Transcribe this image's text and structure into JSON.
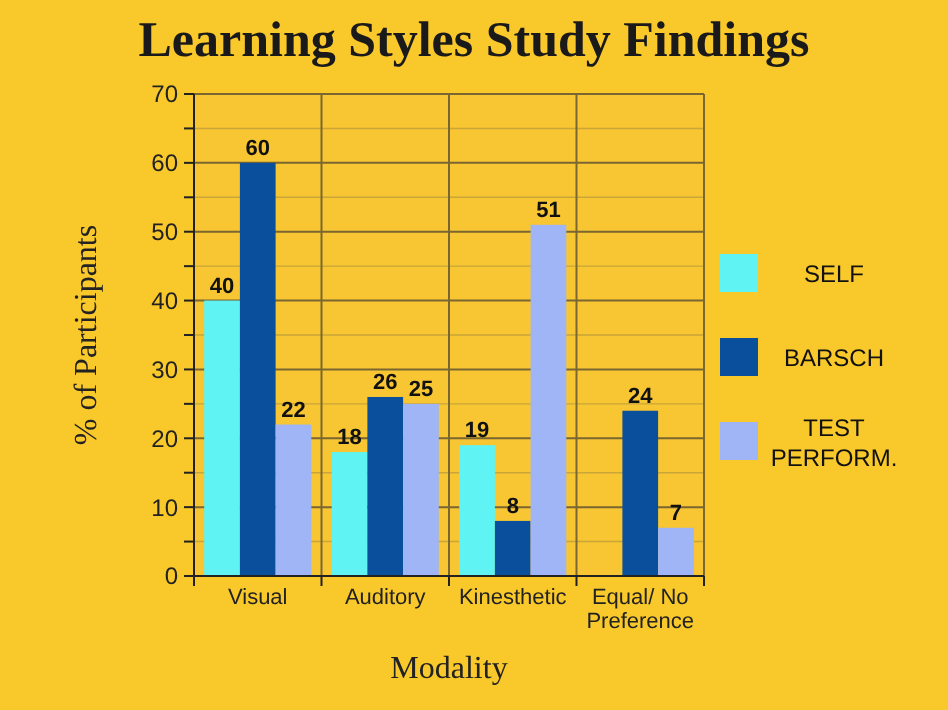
{
  "chart_data": {
    "type": "bar",
    "title": "Learning Styles Study Findings",
    "xlabel": "Modality",
    "ylabel": "% of Participants",
    "categories": [
      "Visual",
      "Auditory",
      "Kinesthetic",
      "Equal/ No Preference"
    ],
    "series": [
      {
        "name": "SELF",
        "color": "#5ff3f3",
        "values": [
          40,
          18,
          19,
          null
        ]
      },
      {
        "name": "BARSCH",
        "color": "#0a4f9c",
        "values": [
          60,
          26,
          8,
          24
        ]
      },
      {
        "name": "TEST PERFORM.",
        "color": "#a0b5f5",
        "values": [
          22,
          25,
          51,
          7
        ]
      }
    ],
    "ylim": [
      0,
      70
    ],
    "yticks": [
      0,
      {
        "value": 5,
        "label": null
      },
      10,
      {
        "value": 15,
        "label": null
      },
      20,
      {
        "value": 25,
        "label": null
      },
      30,
      {
        "value": 35,
        "label": null
      },
      40,
      {
        "value": 45,
        "label": null
      },
      50,
      {
        "value": 55,
        "label": null
      },
      60,
      {
        "value": 65,
        "label": null
      },
      70
    ],
    "grid": true,
    "legend": "right",
    "data_labels": true
  }
}
